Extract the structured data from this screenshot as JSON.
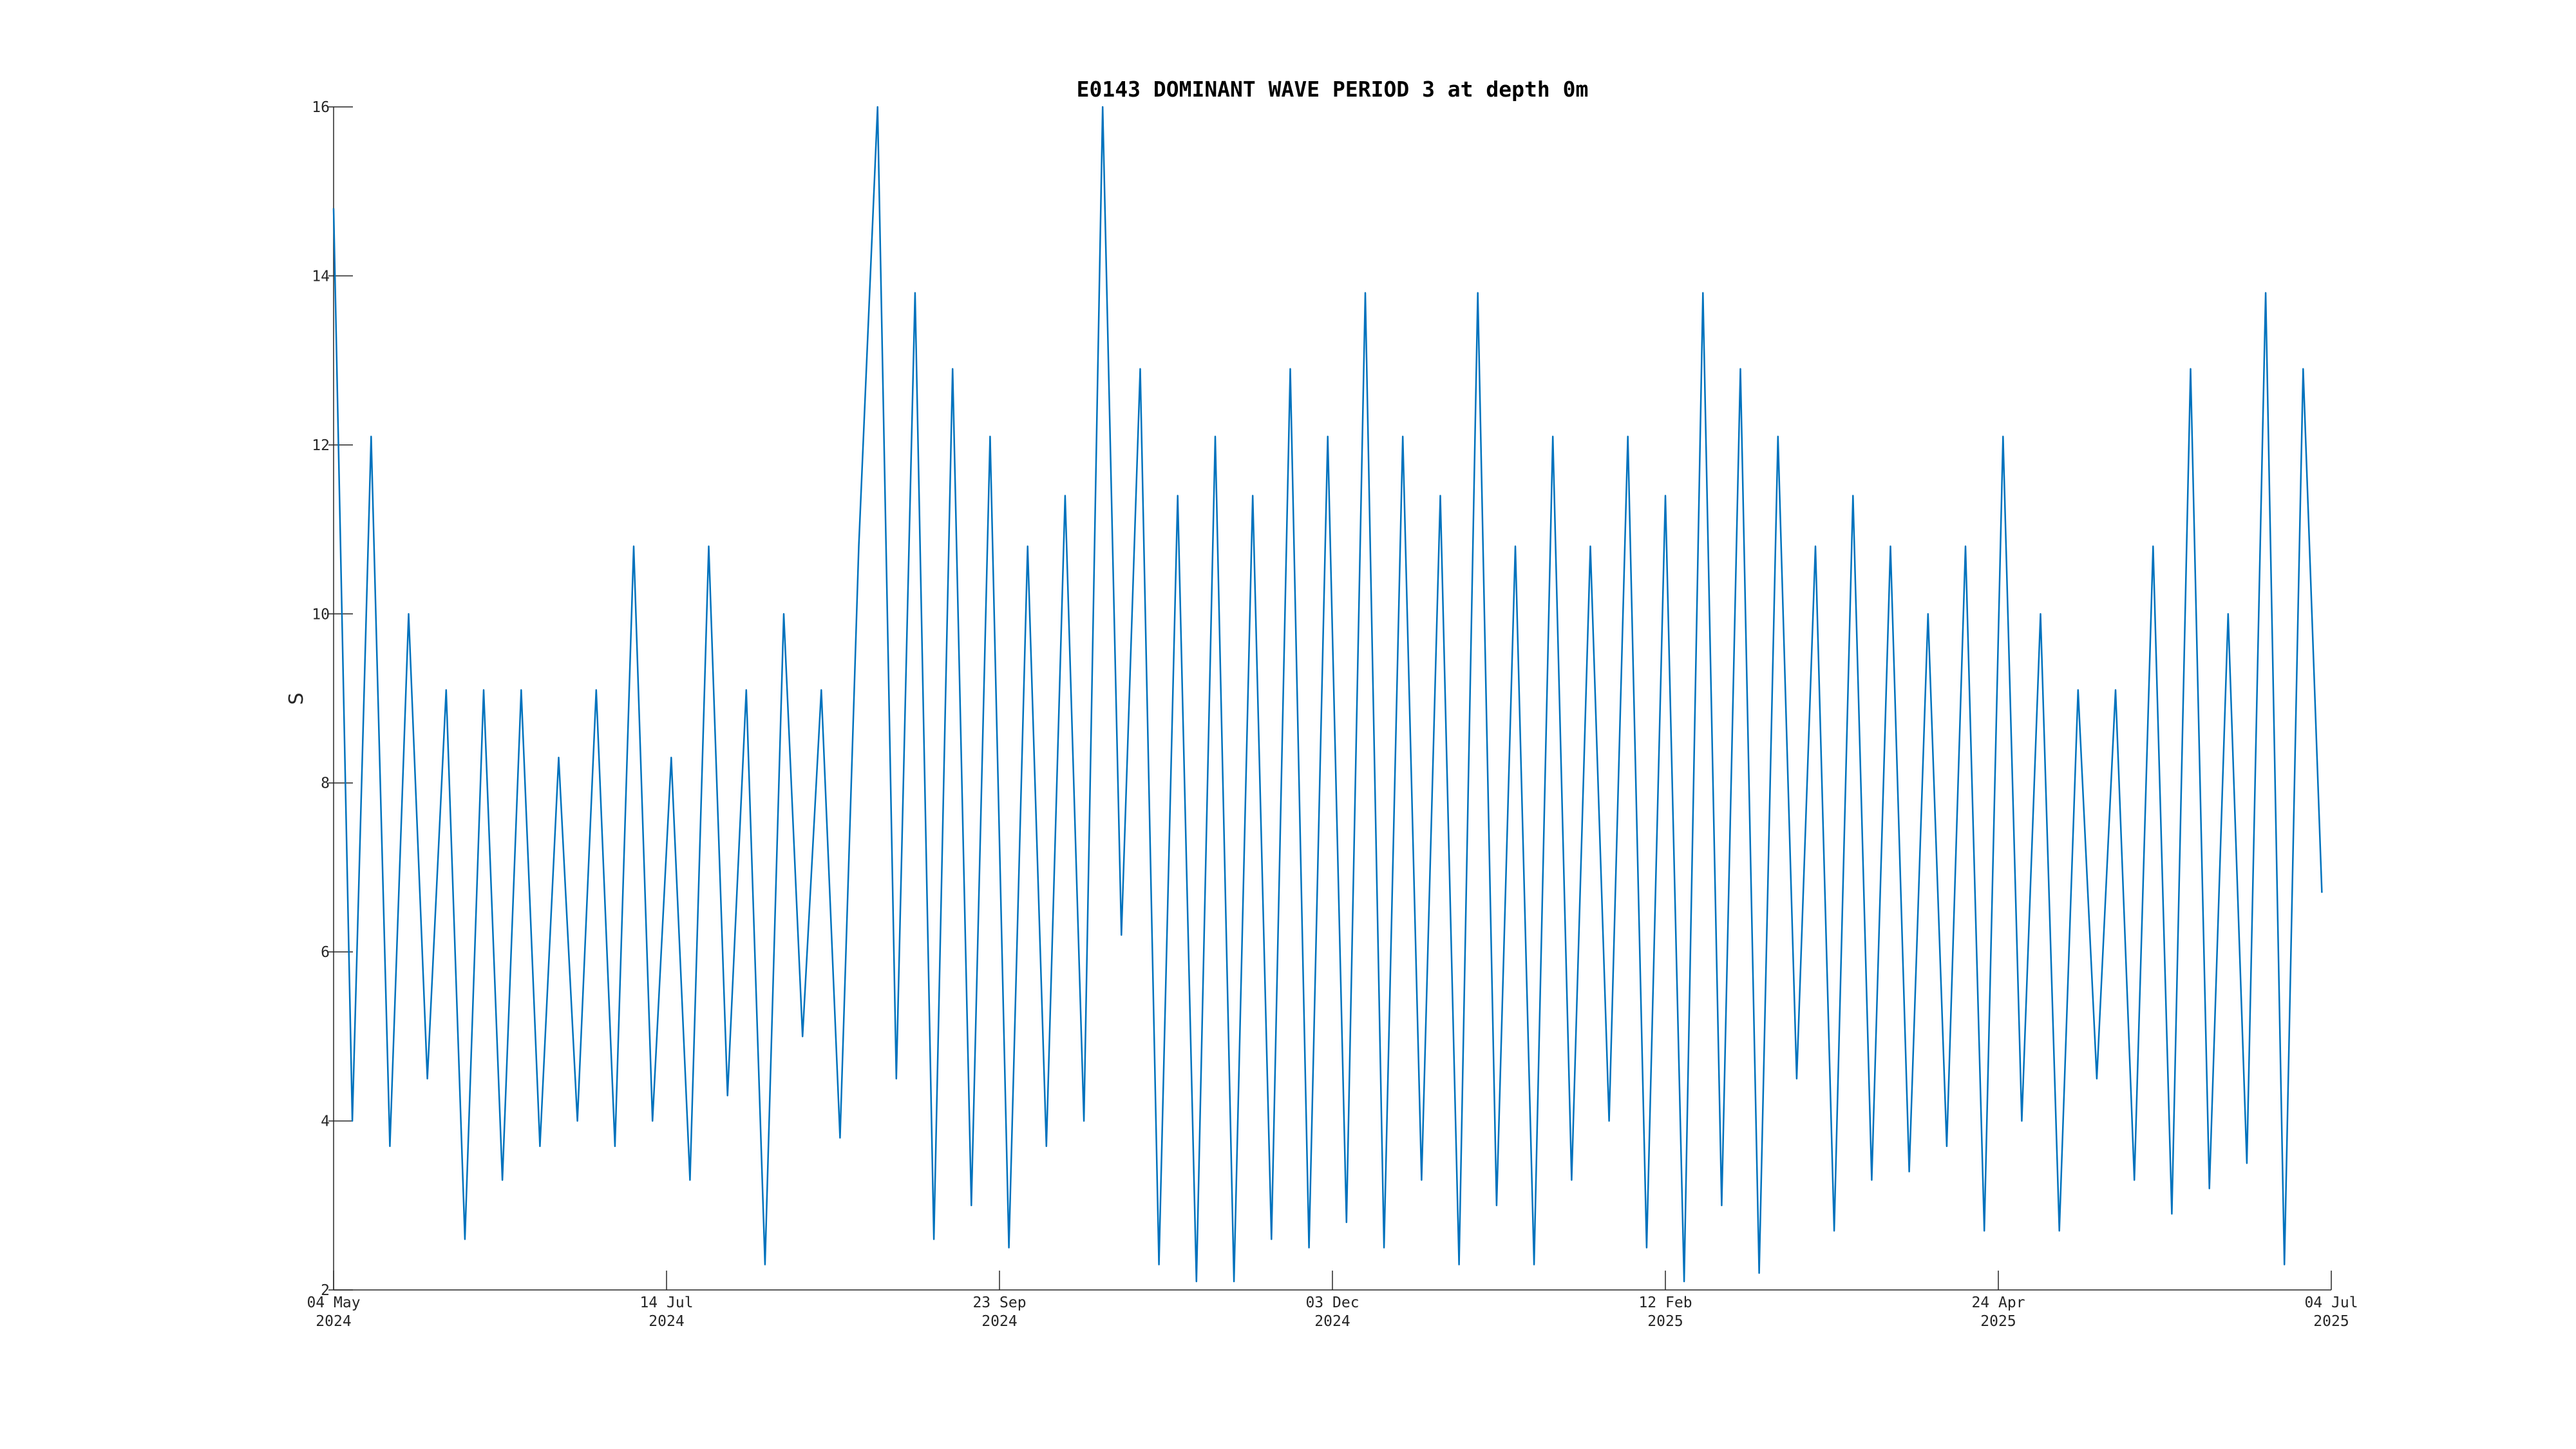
{
  "chart_data": {
    "type": "line",
    "title": "E0143 DOMINANT WAVE PERIOD 3 at depth 0m",
    "y_label": "S",
    "x": [
      "2024-05-04",
      "2024-05-08",
      "2024-05-12",
      "2024-05-16",
      "2024-05-20",
      "2024-05-24",
      "2024-05-28",
      "2024-06-01",
      "2024-06-05",
      "2024-06-09",
      "2024-06-13",
      "2024-06-17",
      "2024-06-21",
      "2024-06-25",
      "2024-06-29",
      "2024-07-03",
      "2024-07-07",
      "2024-07-11",
      "2024-07-15",
      "2024-07-19",
      "2024-07-23",
      "2024-07-27",
      "2024-07-31",
      "2024-08-04",
      "2024-08-08",
      "2024-08-12",
      "2024-08-16",
      "2024-08-20",
      "2024-08-24",
      "2024-08-28",
      "2024-09-01",
      "2024-09-05",
      "2024-09-09",
      "2024-09-13",
      "2024-09-17",
      "2024-09-21",
      "2024-09-25",
      "2024-09-29",
      "2024-10-03",
      "2024-10-07",
      "2024-10-11",
      "2024-10-15",
      "2024-10-19",
      "2024-10-23",
      "2024-10-27",
      "2024-10-31",
      "2024-11-04",
      "2024-11-08",
      "2024-11-12",
      "2024-11-16",
      "2024-11-20",
      "2024-11-24",
      "2024-11-28",
      "2024-12-02",
      "2024-12-06",
      "2024-12-10",
      "2024-12-14",
      "2024-12-18",
      "2024-12-22",
      "2024-12-26",
      "2024-12-30",
      "2025-01-03",
      "2025-01-07",
      "2025-01-11",
      "2025-01-15",
      "2025-01-19",
      "2025-01-23",
      "2025-01-27",
      "2025-01-31",
      "2025-02-04",
      "2025-02-08",
      "2025-02-12",
      "2025-02-16",
      "2025-02-20",
      "2025-02-24",
      "2025-02-28",
      "2025-03-04",
      "2025-03-08",
      "2025-03-12",
      "2025-03-16",
      "2025-03-20",
      "2025-03-24",
      "2025-03-28",
      "2025-04-01",
      "2025-04-05",
      "2025-04-09",
      "2025-04-13",
      "2025-04-17",
      "2025-04-21",
      "2025-04-25",
      "2025-04-29",
      "2025-05-03",
      "2025-05-07",
      "2025-05-11",
      "2025-05-15",
      "2025-05-19",
      "2025-05-23",
      "2025-05-27",
      "2025-05-31",
      "2025-06-04",
      "2025-06-08",
      "2025-06-12",
      "2025-06-16",
      "2025-06-20",
      "2025-06-24",
      "2025-06-28",
      "2025-07-02"
    ],
    "series": [
      {
        "name": "DOMINANT WAVE PERIOD 3",
        "color": "#0072bd",
        "values": [
          14.8,
          4.0,
          12.1,
          3.7,
          10.0,
          4.5,
          9.1,
          2.6,
          9.1,
          3.3,
          9.1,
          3.7,
          8.3,
          4.0,
          9.1,
          3.7,
          10.8,
          4.0,
          8.3,
          3.3,
          10.8,
          4.3,
          9.1,
          2.3,
          10.0,
          5.0,
          9.1,
          3.8,
          10.8,
          16.0,
          4.5,
          13.8,
          2.6,
          12.9,
          3.0,
          12.1,
          2.5,
          10.8,
          3.7,
          11.4,
          4.0,
          16.0,
          6.2,
          12.9,
          2.3,
          11.4,
          2.1,
          12.1,
          2.1,
          11.4,
          2.6,
          12.9,
          2.5,
          12.1,
          2.8,
          13.8,
          2.5,
          12.1,
          3.3,
          11.4,
          2.3,
          13.8,
          3.0,
          10.8,
          2.3,
          12.1,
          3.3,
          10.8,
          4.0,
          12.1,
          2.5,
          11.4,
          2.1,
          13.8,
          3.0,
          12.9,
          2.2,
          12.1,
          4.5,
          10.8,
          2.7,
          11.4,
          3.3,
          10.8,
          3.4,
          10.0,
          3.7,
          10.8,
          2.7,
          12.1,
          4.0,
          10.0,
          2.7,
          9.1,
          4.5,
          9.1,
          3.3,
          10.8,
          2.9,
          12.9,
          3.2,
          10.0,
          3.5,
          13.8,
          2.3,
          12.9,
          6.7
        ]
      }
    ],
    "xlim": [
      "2024-05-04",
      "2025-07-04"
    ],
    "xticks": [
      {
        "value": "2024-05-04",
        "label": [
          "04 May",
          "2024"
        ]
      },
      {
        "value": "2024-07-14",
        "label": [
          "14 Jul",
          "2024"
        ]
      },
      {
        "value": "2024-09-23",
        "label": [
          "23 Sep",
          "2024"
        ]
      },
      {
        "value": "2024-12-03",
        "label": [
          "03 Dec",
          "2024"
        ]
      },
      {
        "value": "2025-02-12",
        "label": [
          "12 Feb",
          "2025"
        ]
      },
      {
        "value": "2025-04-24",
        "label": [
          "24 Apr",
          "2025"
        ]
      },
      {
        "value": "2025-07-04",
        "label": [
          "04 Jul",
          "2025"
        ]
      }
    ],
    "ylim": [
      2,
      16
    ],
    "yticks": [
      2,
      4,
      6,
      8,
      10,
      12,
      14,
      16
    ]
  }
}
